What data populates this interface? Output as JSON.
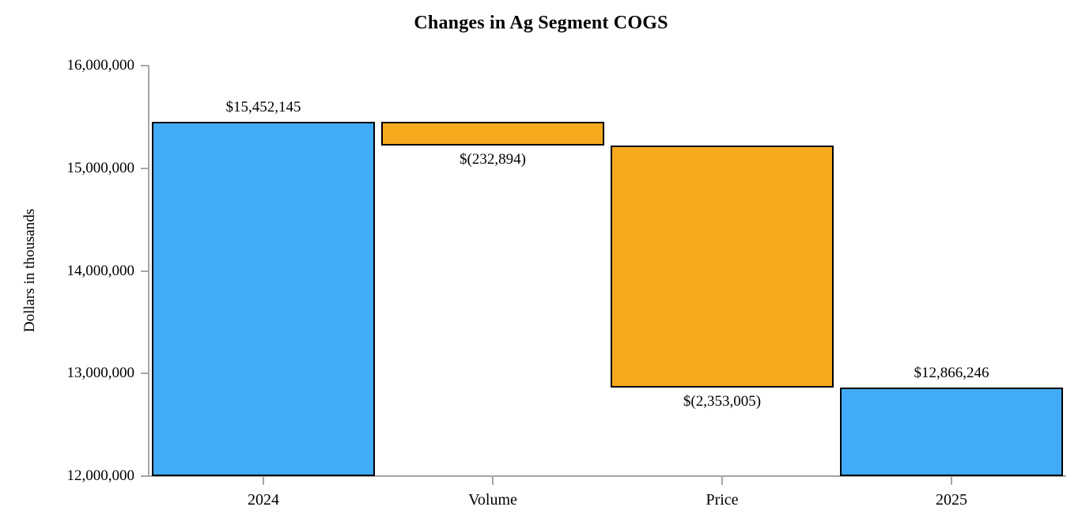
{
  "chart_data": {
    "type": "bar",
    "subtype": "waterfall",
    "title": "Changes in Ag Segment COGS",
    "xlabel": "",
    "ylabel": "Dollars in thousands",
    "ylim": [
      12000000,
      16000000
    ],
    "ytick_interval": 1000000,
    "yticks": [
      {
        "value": 12000000,
        "label": "12,000,000"
      },
      {
        "value": 13000000,
        "label": "13,000,000"
      },
      {
        "value": 14000000,
        "label": "14,000,000"
      },
      {
        "value": 15000000,
        "label": "15,000,000"
      },
      {
        "value": 16000000,
        "label": "16,000,000"
      }
    ],
    "categories": [
      "2024",
      "Volume",
      "Price",
      "2025"
    ],
    "bars": [
      {
        "category": "2024",
        "start": 12000000,
        "end": 15452145,
        "value": 15452145,
        "label": "$15,452,145",
        "label_position": "above",
        "role": "total"
      },
      {
        "category": "Volume",
        "start": 15452145,
        "end": 15219251,
        "value": -232894,
        "label": "$(232,894)",
        "label_position": "below",
        "role": "change"
      },
      {
        "category": "Price",
        "start": 15219251,
        "end": 12866246,
        "value": -2353005,
        "label": "$(2,353,005)",
        "label_position": "below",
        "role": "change"
      },
      {
        "category": "2025",
        "start": 12000000,
        "end": 12866246,
        "value": 12866246,
        "label": "$12,866,246",
        "label_position": "above",
        "role": "total"
      }
    ],
    "colors": {
      "total": "#41abf8",
      "change": "#f7a91e",
      "bar_border": "#000000",
      "axis": "#a6a6a6",
      "text": "#000000",
      "background": "#ffffff"
    },
    "grid": false,
    "legend": null
  }
}
